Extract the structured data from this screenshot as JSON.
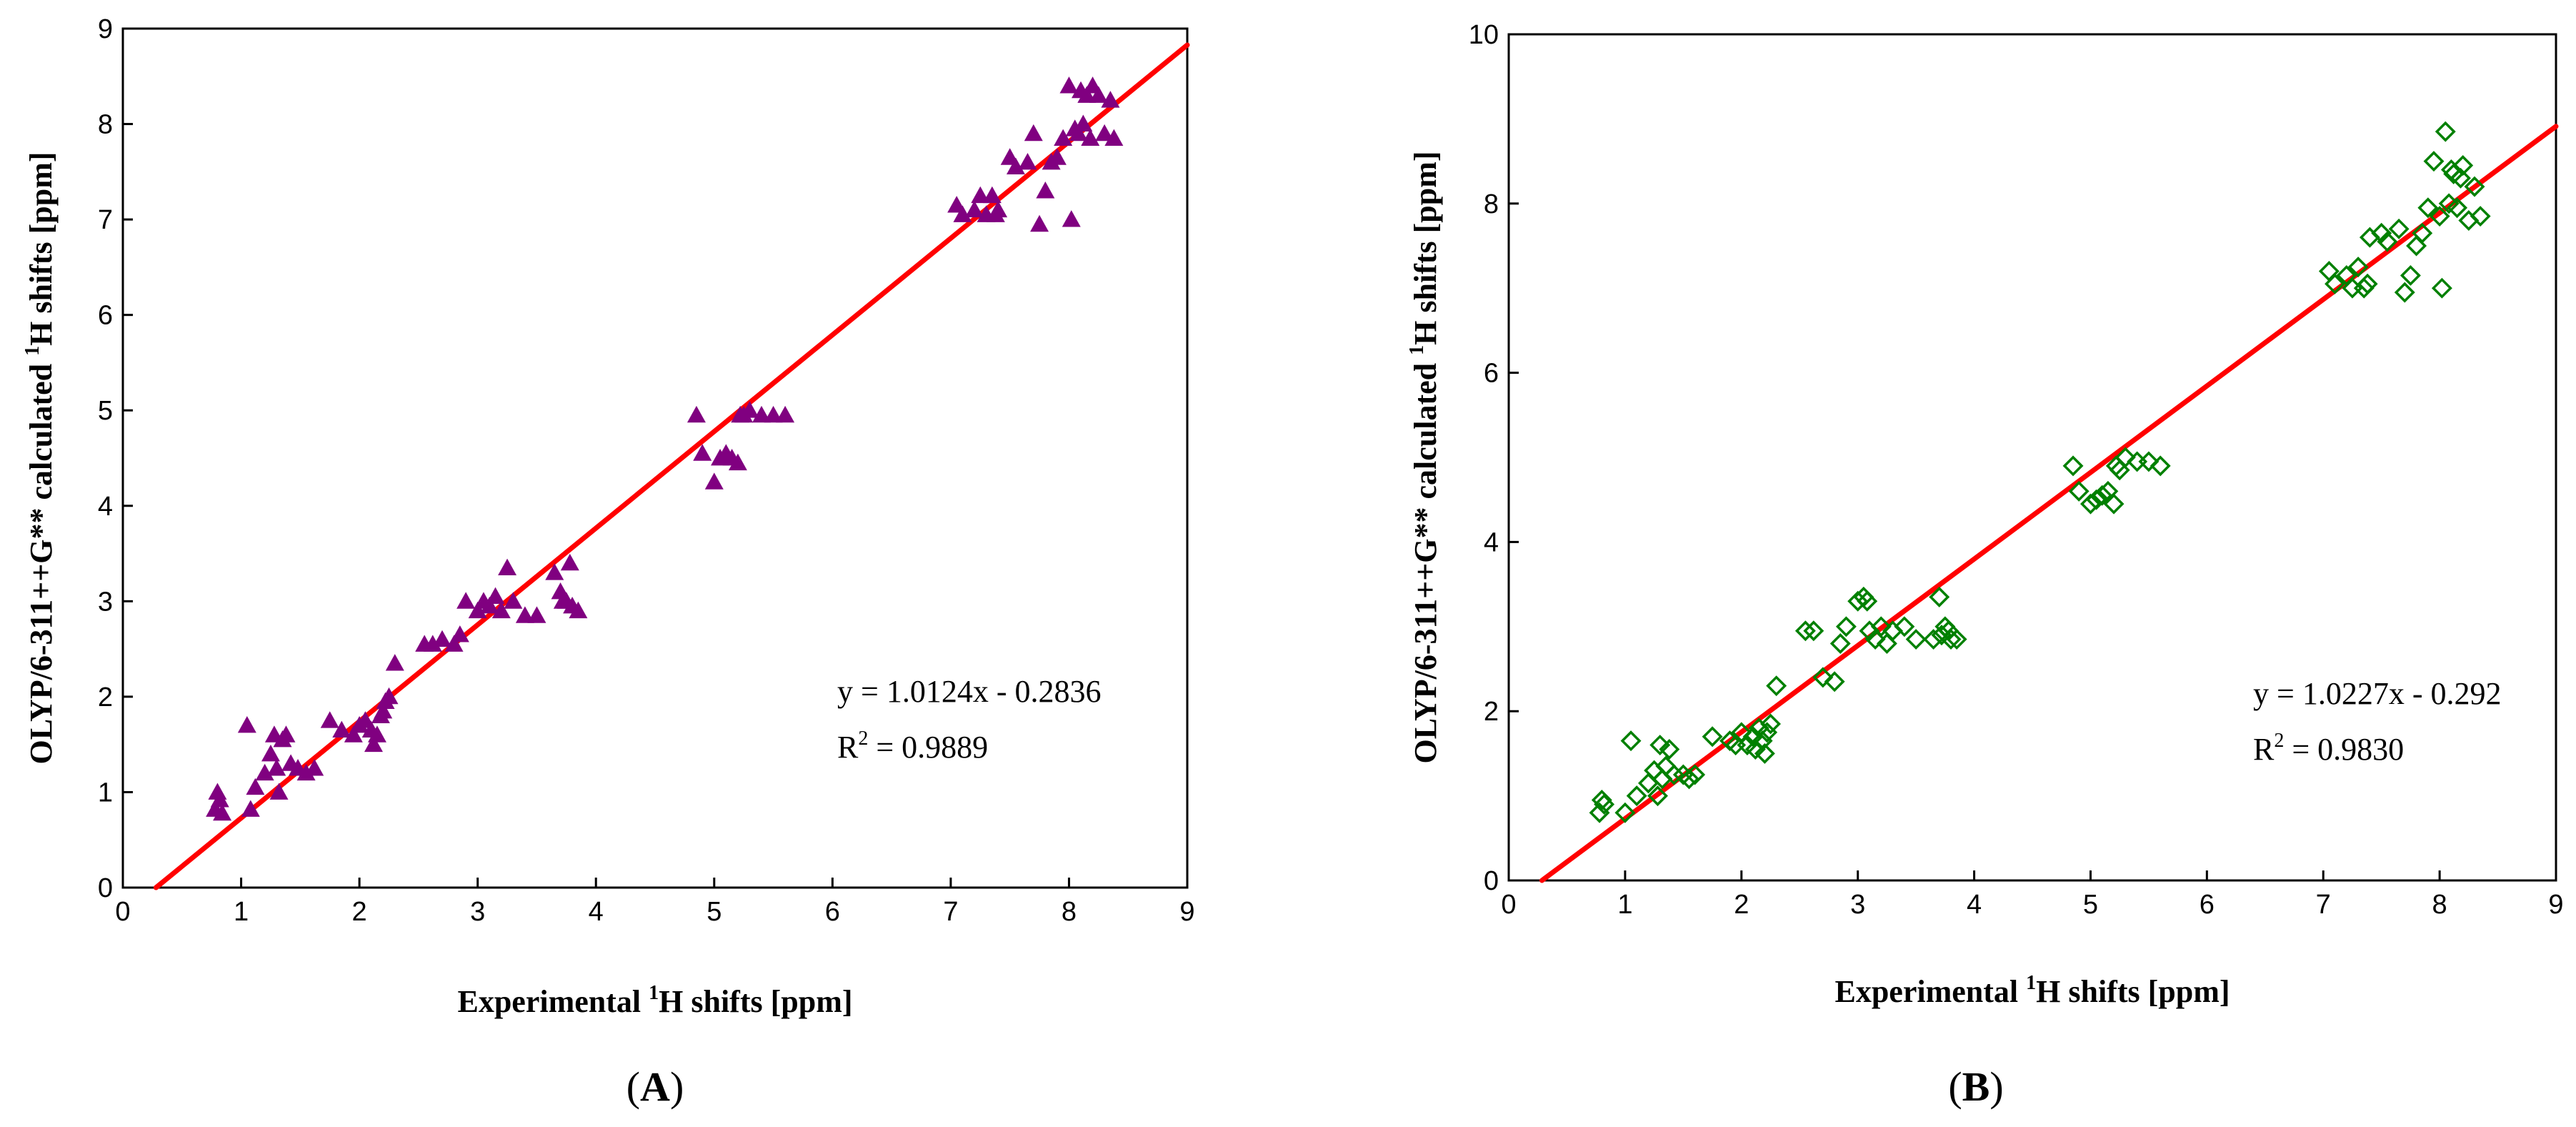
{
  "colors": {
    "fit_line": "#ff0000",
    "marker_a": "#800080",
    "marker_b": "#008000",
    "axis": "#000000"
  },
  "chart_data": [
    {
      "type": "scatter",
      "panel_label": "A",
      "marker": "filled-triangle",
      "xlabel_pre": "Experimental ",
      "xlabel_sup": "1",
      "xlabel_post": "H shifts [ppm]",
      "ylabel_pre": "OLYP/6-311++G** calculated ",
      "ylabel_sup": "1",
      "ylabel_post": "H shifts [ppm]",
      "xlim": [
        0,
        9
      ],
      "ylim": [
        0,
        9
      ],
      "xticks": [
        0,
        1,
        2,
        3,
        4,
        5,
        6,
        7,
        8,
        9
      ],
      "yticks": [
        0,
        1,
        2,
        3,
        4,
        5,
        6,
        7,
        8,
        9
      ],
      "fit": {
        "slope": 1.0124,
        "intercept": -0.2836
      },
      "equation": "y = 1.0124x - 0.2836",
      "r2_label": "R",
      "r2_sup": "2",
      "r2_value": " = 0.9889",
      "x": [
        0.78,
        0.8,
        0.82,
        0.84,
        1.05,
        1.08,
        1.12,
        1.2,
        1.25,
        1.28,
        1.3,
        1.32,
        1.35,
        1.38,
        1.42,
        1.48,
        1.55,
        1.62,
        1.75,
        1.85,
        1.95,
        2.0,
        2.05,
        2.1,
        2.12,
        2.15,
        2.18,
        2.2,
        2.22,
        2.25,
        2.3,
        2.55,
        2.62,
        2.7,
        2.8,
        2.85,
        2.9,
        3.0,
        3.05,
        3.1,
        3.15,
        3.2,
        3.25,
        3.3,
        3.4,
        3.5,
        3.65,
        3.7,
        3.72,
        3.75,
        3.78,
        3.8,
        3.85,
        4.85,
        4.9,
        5.0,
        5.05,
        5.1,
        5.15,
        5.2,
        5.22,
        5.25,
        5.3,
        5.4,
        5.5,
        5.6,
        7.05,
        7.1,
        7.2,
        7.25,
        7.3,
        7.35,
        7.38,
        7.4,
        7.5,
        7.55,
        7.65,
        7.7,
        7.75,
        7.8,
        7.85,
        7.9,
        7.95,
        8.0,
        8.02,
        8.05,
        8.08,
        8.1,
        8.12,
        8.15,
        8.18,
        8.2,
        8.25,
        8.3,
        8.35,
        8.38
      ],
      "y": [
        0.82,
        1.0,
        0.92,
        0.78,
        1.7,
        0.82,
        1.05,
        1.2,
        1.4,
        1.6,
        1.25,
        1.0,
        1.55,
        1.6,
        1.3,
        1.25,
        1.2,
        1.25,
        1.75,
        1.65,
        1.6,
        1.7,
        1.75,
        1.65,
        1.5,
        1.6,
        1.8,
        1.85,
        1.95,
        2.0,
        2.35,
        2.55,
        2.55,
        2.6,
        2.55,
        2.65,
        3.0,
        2.9,
        3.0,
        2.95,
        3.05,
        2.9,
        3.35,
        3.0,
        2.85,
        2.85,
        3.3,
        3.1,
        3.0,
        3.0,
        3.4,
        2.95,
        2.9,
        4.95,
        4.55,
        4.25,
        4.5,
        4.55,
        4.5,
        4.45,
        4.95,
        4.95,
        5.0,
        4.95,
        4.95,
        4.95,
        7.15,
        7.05,
        7.1,
        7.25,
        7.05,
        7.25,
        7.05,
        7.1,
        7.65,
        7.55,
        7.6,
        7.9,
        6.95,
        7.3,
        7.6,
        7.65,
        7.85,
        8.4,
        7.0,
        7.95,
        7.9,
        8.35,
        8.0,
        8.3,
        7.85,
        8.4,
        8.3,
        7.9,
        8.25,
        7.85
      ]
    },
    {
      "type": "scatter",
      "panel_label": "B",
      "marker": "open-diamond",
      "xlabel_pre": "Experimental ",
      "xlabel_sup": "1",
      "xlabel_post": "H shifts [ppm]",
      "ylabel_pre": "OLYP/6-311++G** calculated ",
      "ylabel_sup": "1",
      "ylabel_post": "H shifts [ppm]",
      "xlim": [
        0,
        9
      ],
      "ylim": [
        0,
        10
      ],
      "xticks": [
        0,
        1,
        2,
        3,
        4,
        5,
        6,
        7,
        8,
        9
      ],
      "yticks": [
        0,
        2,
        4,
        6,
        8,
        10
      ],
      "fit": {
        "slope": 1.0227,
        "intercept": -0.292
      },
      "equation": "y = 1.0227x - 0.292",
      "r2_label": "R",
      "r2_sup": "2",
      "r2_value": " = 0.9830",
      "x": [
        0.78,
        0.8,
        0.82,
        1.0,
        1.05,
        1.1,
        1.2,
        1.25,
        1.28,
        1.3,
        1.32,
        1.35,
        1.38,
        1.42,
        1.5,
        1.55,
        1.6,
        1.75,
        1.9,
        1.95,
        2.0,
        2.05,
        2.1,
        2.12,
        2.15,
        2.18,
        2.2,
        2.22,
        2.25,
        2.3,
        2.55,
        2.62,
        2.7,
        2.8,
        2.85,
        2.9,
        3.0,
        3.05,
        3.08,
        3.1,
        3.15,
        3.2,
        3.25,
        3.3,
        3.4,
        3.5,
        3.65,
        3.7,
        3.72,
        3.75,
        3.78,
        3.8,
        3.85,
        4.85,
        4.9,
        5.0,
        5.05,
        5.1,
        5.15,
        5.2,
        5.22,
        5.25,
        5.3,
        5.4,
        5.5,
        5.6,
        7.05,
        7.1,
        7.2,
        7.25,
        7.3,
        7.35,
        7.38,
        7.4,
        7.5,
        7.55,
        7.65,
        7.7,
        7.75,
        7.8,
        7.85,
        7.9,
        7.95,
        8.0,
        8.02,
        8.05,
        8.08,
        8.1,
        8.12,
        8.15,
        8.18,
        8.2,
        8.25,
        8.3,
        8.35
      ],
      "y": [
        0.8,
        0.95,
        0.9,
        0.8,
        1.65,
        1.0,
        1.15,
        1.3,
        1.0,
        1.6,
        1.2,
        1.35,
        1.55,
        1.25,
        1.25,
        1.2,
        1.25,
        1.7,
        1.65,
        1.6,
        1.75,
        1.6,
        1.7,
        1.55,
        1.8,
        1.65,
        1.5,
        1.75,
        1.85,
        2.3,
        2.95,
        2.95,
        2.4,
        2.35,
        2.8,
        3.0,
        3.3,
        3.35,
        3.3,
        2.95,
        2.85,
        3.0,
        2.8,
        2.95,
        3.0,
        2.85,
        2.85,
        3.35,
        2.9,
        3.0,
        2.95,
        2.85,
        2.85,
        4.9,
        4.6,
        4.45,
        4.5,
        4.55,
        4.6,
        4.45,
        4.9,
        4.85,
        5.0,
        4.95,
        4.95,
        4.9,
        7.2,
        7.05,
        7.15,
        7.0,
        7.25,
        7.0,
        7.05,
        7.6,
        7.65,
        7.55,
        7.7,
        6.95,
        7.15,
        7.5,
        7.65,
        7.95,
        8.5,
        7.85,
        7.0,
        8.85,
        8.0,
        8.4,
        8.35,
        7.95,
        8.3,
        8.45,
        7.8,
        8.2,
        7.85
      ]
    }
  ]
}
